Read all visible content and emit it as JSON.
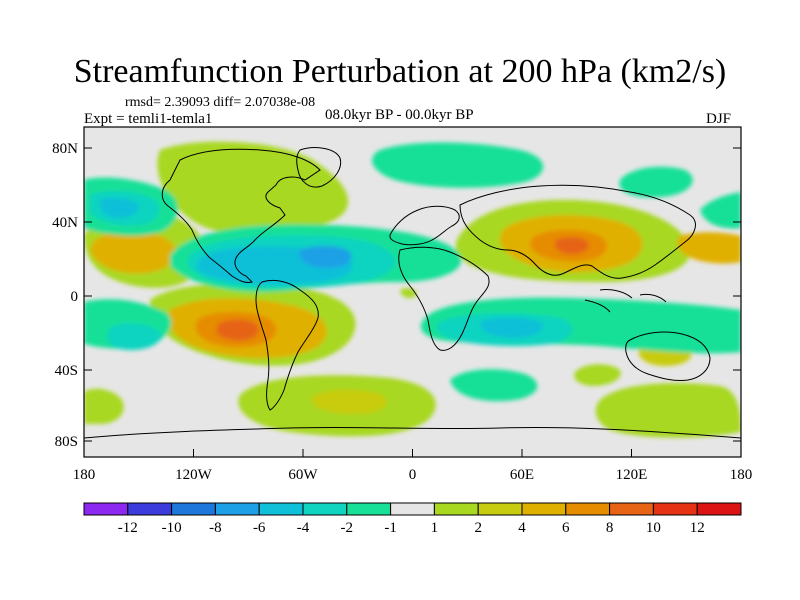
{
  "title": "Streamfunction Perturbation at 200 hPa (km2/s)",
  "stats": {
    "rmsd_diff": "rmsd= 2.39093 diff= 2.07038e-08"
  },
  "expt": "Expt = temli1-temla1",
  "period": "08.0kyr BP - 00.0kyr BP",
  "season": "DJF",
  "axes": {
    "lat_labels": [
      "80N",
      "40N",
      "0",
      "40S",
      "80S"
    ],
    "lon_labels": [
      "180",
      "120W",
      "60W",
      "0",
      "60E",
      "120E",
      "180"
    ]
  },
  "colorbar": {
    "labels": [
      "-12",
      "-10",
      "-8",
      "-6",
      "-4",
      "-2",
      "-1",
      "1",
      "2",
      "4",
      "6",
      "8",
      "10",
      "12"
    ],
    "colors": [
      "#8c28f0",
      "#3c3cdc",
      "#1e78dc",
      "#1ea0e6",
      "#10c0d8",
      "#10d4c0",
      "#18e098",
      "#e6e6e6",
      "#a8d820",
      "#c8cc10",
      "#e0b000",
      "#e68c00",
      "#e66414",
      "#e63214",
      "#dc1414"
    ]
  },
  "colors": {
    "background": "#e6e6e6",
    "coast": "#000000"
  }
}
